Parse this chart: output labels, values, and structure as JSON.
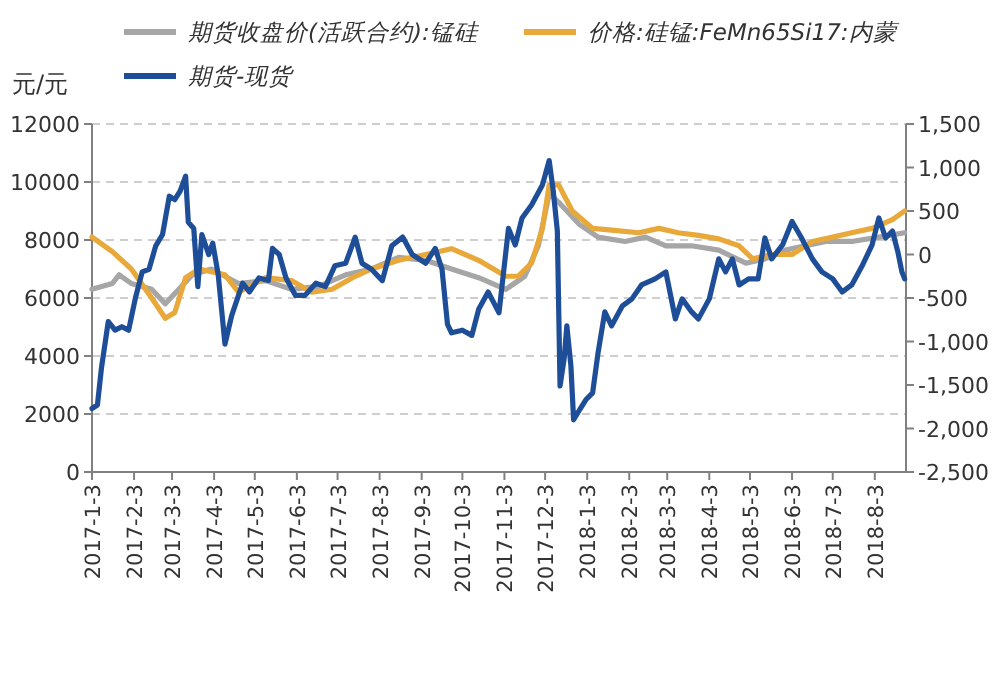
{
  "chart_data": {
    "type": "line",
    "ylabel": "元/元",
    "legend": "top",
    "grid": "y",
    "line_style": "solid",
    "marker": "none",
    "xlim": [
      "2017-01-03",
      "2018-08-26"
    ],
    "xticks": [
      {
        "value": "2017-01-03",
        "label": "2017-1-3"
      },
      {
        "value": "2017-02-03",
        "label": "2017-2-3"
      },
      {
        "value": "2017-03-03",
        "label": "2017-3-3"
      },
      {
        "value": "2017-04-03",
        "label": "2017-4-3"
      },
      {
        "value": "2017-05-03",
        "label": "2017-5-3"
      },
      {
        "value": "2017-06-03",
        "label": "2017-6-3"
      },
      {
        "value": "2017-07-03",
        "label": "2017-7-3"
      },
      {
        "value": "2017-08-03",
        "label": "2017-8-3"
      },
      {
        "value": "2017-09-03",
        "label": "2017-9-3"
      },
      {
        "value": "2017-10-03",
        "label": "2017-10-3"
      },
      {
        "value": "2017-11-03",
        "label": "2017-11-3"
      },
      {
        "value": "2017-12-03",
        "label": "2017-12-3"
      },
      {
        "value": "2018-01-03",
        "label": "2018-1-3"
      },
      {
        "value": "2018-02-03",
        "label": "2018-2-3"
      },
      {
        "value": "2018-03-03",
        "label": "2018-3-3"
      },
      {
        "value": "2018-04-03",
        "label": "2018-4-3"
      },
      {
        "value": "2018-05-03",
        "label": "2018-5-3"
      },
      {
        "value": "2018-06-03",
        "label": "2018-6-3"
      },
      {
        "value": "2018-07-03",
        "label": "2018-7-3"
      },
      {
        "value": "2018-08-03",
        "label": "2018-8-3"
      }
    ],
    "ylim": [
      0,
      12000
    ],
    "yticks": [
      0,
      2000,
      4000,
      6000,
      8000,
      10000,
      12000
    ],
    "y2lim": [
      -2500,
      1500
    ],
    "y2ticks": [
      {
        "value": -2500,
        "label": "-2,500"
      },
      {
        "value": -2000,
        "label": "-2,000"
      },
      {
        "value": -1500,
        "label": "-1,500"
      },
      {
        "value": -1000,
        "label": "-1,000"
      },
      {
        "value": -500,
        "label": "-500"
      },
      0,
      500,
      {
        "value": 1000,
        "label": "1,000"
      },
      {
        "value": 1500,
        "label": "1,500"
      }
    ],
    "series": [
      {
        "name": "期货收盘价(活跃合约):锰硅",
        "color": "#a6a6a6",
        "x": [
          "2017-01-03",
          "2017-01-18",
          "2017-01-23",
          "2017-02-01",
          "2017-02-16",
          "2017-02-26",
          "2017-03-08",
          "2017-03-18",
          "2017-04-01",
          "2017-04-21",
          "2017-05-11",
          "2017-05-30",
          "2017-06-19",
          "2017-07-09",
          "2017-07-28",
          "2017-08-17",
          "2017-09-06",
          "2017-09-25",
          "2017-10-15",
          "2017-11-04",
          "2017-11-18",
          "2017-11-28",
          "2017-12-06",
          "2017-12-13",
          "2017-12-28",
          "2018-01-11",
          "2018-01-31",
          "2018-02-15",
          "2018-03-02",
          "2018-03-21",
          "2018-04-10",
          "2018-04-30",
          "2018-05-14",
          "2018-05-29",
          "2018-06-13",
          "2018-06-28",
          "2018-07-17",
          "2018-08-06",
          "2018-08-25"
        ],
        "values": [
          6300,
          6500,
          6800,
          6500,
          6300,
          5800,
          6300,
          6800,
          7000,
          6500,
          6600,
          6300,
          6400,
          6800,
          7000,
          7400,
          7300,
          7000,
          6700,
          6300,
          6750,
          7800,
          9600,
          9300,
          8550,
          8100,
          7950,
          8100,
          7800,
          7800,
          7650,
          7200,
          7350,
          7650,
          7800,
          7950,
          7950,
          8100,
          8250
        ]
      },
      {
        "name": "价格:硅锰:FeMn65Si17:内蒙",
        "color": "#e8a83a",
        "x": [
          "2017-01-03",
          "2017-01-18",
          "2017-02-01",
          "2017-02-16",
          "2017-02-26",
          "2017-03-05",
          "2017-03-13",
          "2017-03-23",
          "2017-04-11",
          "2017-04-21",
          "2017-05-11",
          "2017-05-30",
          "2017-06-14",
          "2017-06-29",
          "2017-07-14",
          "2017-07-28",
          "2017-08-17",
          "2017-09-06",
          "2017-09-25",
          "2017-10-15",
          "2017-11-04",
          "2017-11-13",
          "2017-11-23",
          "2017-12-01",
          "2017-12-06",
          "2017-12-13",
          "2017-12-23",
          "2018-01-07",
          "2018-01-21",
          "2018-02-10",
          "2018-02-25",
          "2018-03-11",
          "2018-03-26",
          "2018-04-10",
          "2018-04-25",
          "2018-05-05",
          "2018-05-19",
          "2018-06-03",
          "2018-06-18",
          "2018-07-03",
          "2018-07-17",
          "2018-08-01",
          "2018-08-16",
          "2018-08-25"
        ],
        "values": [
          8100,
          7600,
          7000,
          6000,
          5300,
          5500,
          6700,
          7000,
          6800,
          6200,
          6700,
          6600,
          6200,
          6300,
          6700,
          7000,
          7300,
          7500,
          7700,
          7300,
          6750,
          6750,
          7200,
          8400,
          9900,
          9900,
          9000,
          8400,
          8340,
          8250,
          8400,
          8250,
          8160,
          8040,
          7800,
          7350,
          7500,
          7500,
          7950,
          8100,
          8250,
          8400,
          8700,
          9000
        ]
      },
      {
        "name": "期货-现货",
        "color": "#1f4e99",
        "axis": "y2",
        "x": [
          "2017-01-03",
          "2017-01-07",
          "2017-01-10",
          "2017-01-15",
          "2017-01-20",
          "2017-01-25",
          "2017-01-30",
          "2017-02-04",
          "2017-02-09",
          "2017-02-14",
          "2017-02-19",
          "2017-02-24",
          "2017-03-01",
          "2017-03-05",
          "2017-03-09",
          "2017-03-13",
          "2017-03-15",
          "2017-03-19",
          "2017-03-22",
          "2017-03-25",
          "2017-03-30",
          "2017-04-02",
          "2017-04-06",
          "2017-04-11",
          "2017-04-16",
          "2017-04-24",
          "2017-04-29",
          "2017-05-06",
          "2017-05-13",
          "2017-05-16",
          "2017-05-21",
          "2017-05-26",
          "2017-06-02",
          "2017-06-09",
          "2017-06-17",
          "2017-06-24",
          "2017-07-01",
          "2017-07-09",
          "2017-07-16",
          "2017-07-21",
          "2017-07-28",
          "2017-08-05",
          "2017-08-12",
          "2017-08-20",
          "2017-08-27",
          "2017-09-06",
          "2017-09-13",
          "2017-09-18",
          "2017-09-22",
          "2017-09-25",
          "2017-10-03",
          "2017-10-10",
          "2017-10-15",
          "2017-10-22",
          "2017-10-30",
          "2017-11-06",
          "2017-11-11",
          "2017-11-16",
          "2017-11-23",
          "2017-12-01",
          "2017-12-06",
          "2017-12-09",
          "2017-12-12",
          "2017-12-14",
          "2017-12-17",
          "2017-12-19",
          "2017-12-22",
          "2017-12-24",
          "2017-12-27",
          "2018-01-02",
          "2018-01-07",
          "2018-01-11",
          "2018-01-16",
          "2018-01-21",
          "2018-01-29",
          "2018-02-05",
          "2018-02-12",
          "2018-02-22",
          "2018-03-02",
          "2018-03-09",
          "2018-03-14",
          "2018-03-21",
          "2018-03-26",
          "2018-04-03",
          "2018-04-10",
          "2018-04-15",
          "2018-04-20",
          "2018-04-25",
          "2018-05-02",
          "2018-05-09",
          "2018-05-14",
          "2018-05-19",
          "2018-05-27",
          "2018-06-03",
          "2018-06-10",
          "2018-06-18",
          "2018-06-25",
          "2018-07-03",
          "2018-07-10",
          "2018-07-17",
          "2018-07-25",
          "2018-08-01",
          "2018-08-06",
          "2018-08-11",
          "2018-08-16",
          "2018-08-20",
          "2018-08-23",
          "2018-08-25"
        ],
        "values": [
          -1770,
          -1730,
          -1300,
          -770,
          -870,
          -830,
          -870,
          -500,
          -200,
          -170,
          100,
          230,
          670,
          630,
          730,
          900,
          370,
          300,
          -370,
          230,
          0,
          130,
          -230,
          -1030,
          -700,
          -330,
          -430,
          -270,
          -300,
          70,
          0,
          -270,
          -470,
          -470,
          -330,
          -370,
          -130,
          -100,
          200,
          -100,
          -170,
          -300,
          100,
          200,
          0,
          -100,
          70,
          -170,
          -800,
          -900,
          -870,
          -930,
          -630,
          -430,
          -670,
          300,
          110,
          420,
          570,
          800,
          1080,
          730,
          270,
          -1510,
          -1200,
          -820,
          -1280,
          -1900,
          -1820,
          -1670,
          -1590,
          -1130,
          -660,
          -820,
          -590,
          -510,
          -350,
          -280,
          -200,
          -740,
          -510,
          -660,
          -740,
          -510,
          -50,
          -200,
          -50,
          -350,
          -280,
          -280,
          190,
          -50,
          110,
          380,
          190,
          -50,
          -200,
          -280,
          -430,
          -350,
          -120,
          110,
          420,
          190,
          270,
          30,
          -200,
          -280
        ]
      }
    ]
  }
}
